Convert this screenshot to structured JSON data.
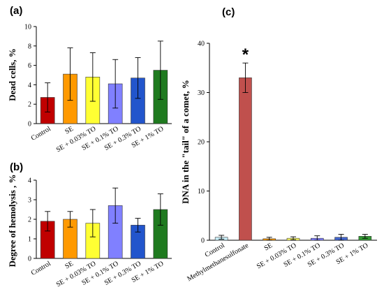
{
  "chart_data": [
    {
      "panel": "(a)",
      "type": "bar",
      "ylabel": "Dead cells, %",
      "ylim": [
        0,
        10
      ],
      "yticks": [
        0,
        2,
        4,
        6,
        8,
        10
      ],
      "categories": [
        "Control",
        "SE",
        "SE + 0.03% TO",
        "SE + 0.1% TO",
        "SE + 0.3% TO",
        "SE + 1% TO"
      ],
      "values": [
        2.7,
        5.1,
        4.8,
        4.1,
        4.7,
        5.5
      ],
      "errors": [
        1.5,
        2.7,
        2.5,
        2.5,
        2.1,
        3.0
      ],
      "colors": [
        "#c00000",
        "#ff9900",
        "#ffff33",
        "#8080ff",
        "#2255cc",
        "#1f7a1f"
      ]
    },
    {
      "panel": "(b)",
      "type": "bar",
      "ylabel": "Degree of hemolysis , %",
      "ylim": [
        0,
        4
      ],
      "yticks": [
        0,
        1,
        2,
        3,
        4
      ],
      "categories": [
        "Control",
        "SE",
        "SE + 0.03% TO",
        "SE + 0.1% TO",
        "SE + 0.3% TO",
        "SE + 1% TO"
      ],
      "values": [
        1.9,
        2.0,
        1.8,
        2.7,
        1.7,
        2.5
      ],
      "errors": [
        0.5,
        0.4,
        0.7,
        0.9,
        0.35,
        0.8
      ],
      "colors": [
        "#c00000",
        "#ff9900",
        "#ffff33",
        "#8080ff",
        "#2255cc",
        "#1f7a1f"
      ]
    },
    {
      "panel": "(c)",
      "type": "bar",
      "ylabel": "DNA in the \"tail\" of a comet, %",
      "ylim": [
        0,
        40
      ],
      "yticks": [
        0,
        10,
        20,
        30,
        40
      ],
      "categories": [
        "Control",
        "Methylmethanesulfonate",
        "SE",
        "SE + 0.03% TO",
        "SE + 0.1% TO",
        "SE + 0.3% TO",
        "SE + 1% TO"
      ],
      "values": [
        0.6,
        33.0,
        0.3,
        0.4,
        0.4,
        0.6,
        0.8
      ],
      "errors": [
        0.4,
        3.0,
        0.3,
        0.3,
        0.5,
        0.6,
        0.4
      ],
      "colors": [
        "#c8eef8",
        "#c0504d",
        "#ff9900",
        "#ffff66",
        "#8080ff",
        "#4466cc",
        "#339933"
      ],
      "annotation": "*"
    }
  ]
}
